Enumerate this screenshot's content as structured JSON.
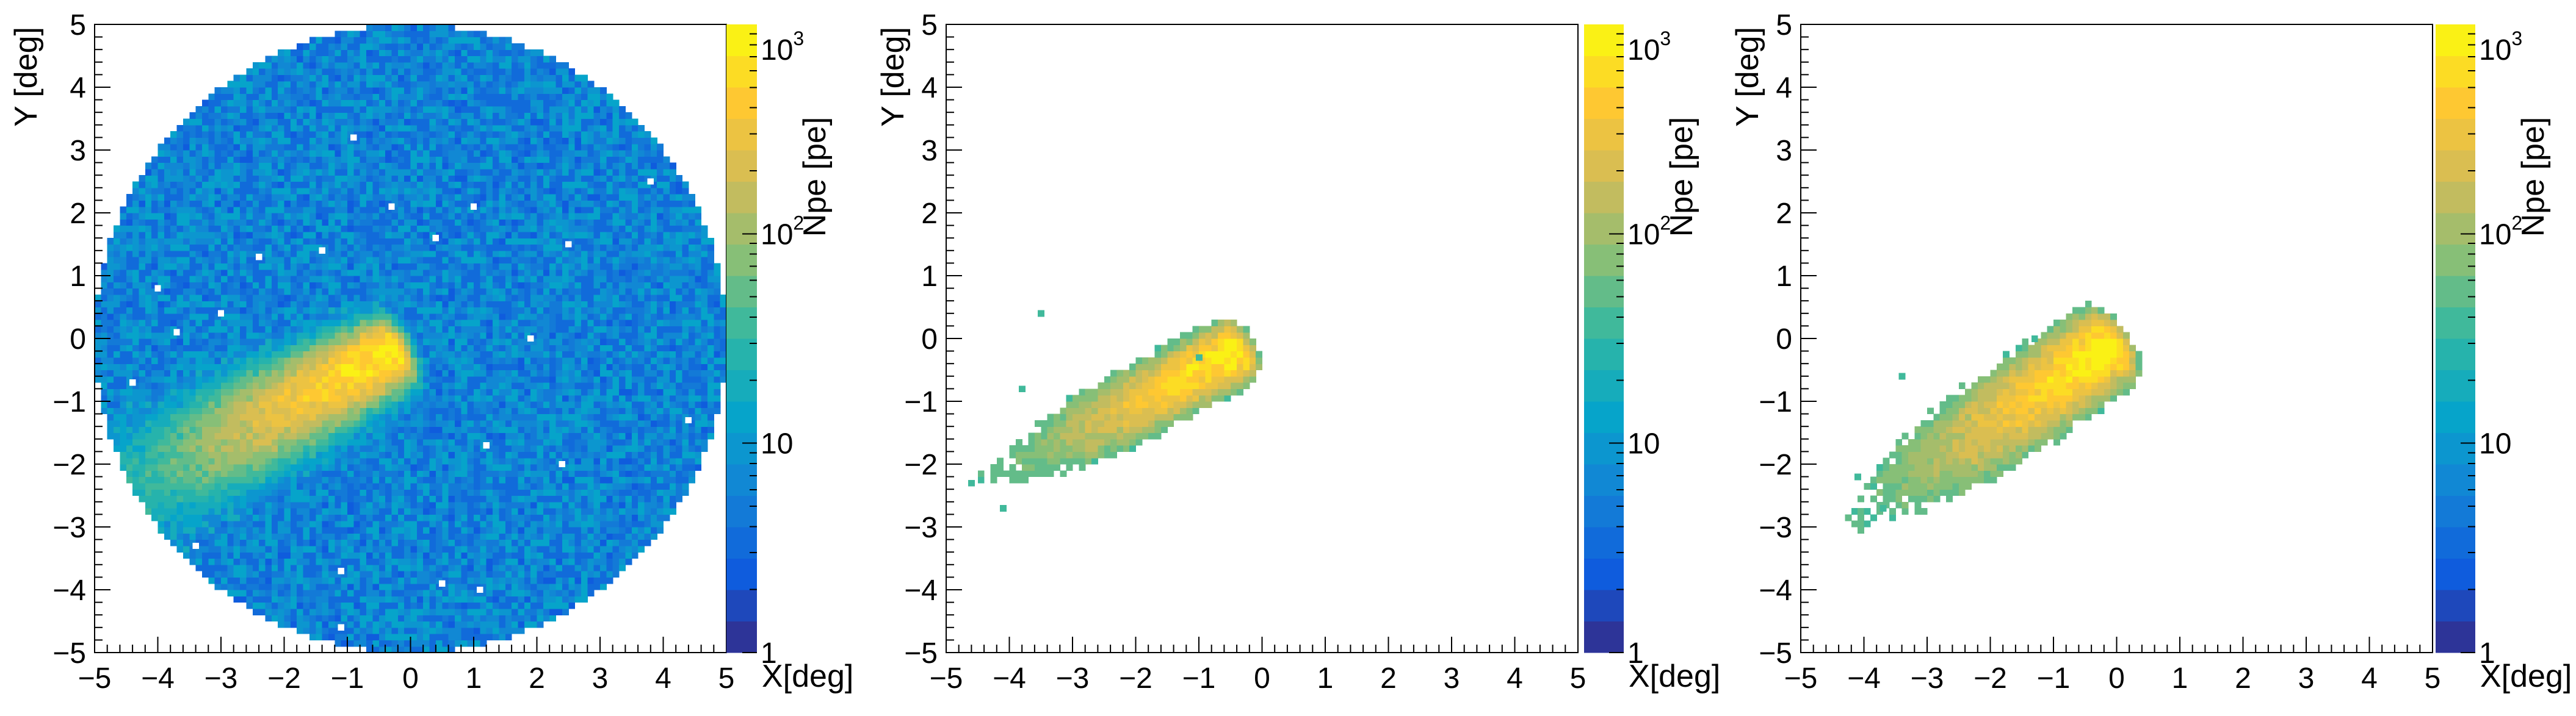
{
  "chart_data": [
    {
      "type": "heatmap",
      "xlabel": "X[deg]",
      "ylabel": "Y [deg]",
      "zlabel": "Npe [pe]",
      "xlim": [
        -5,
        5
      ],
      "ylim": [
        -5,
        5
      ],
      "x_ticks": [
        "−5",
        "−4",
        "−3",
        "−2",
        "−1",
        "0",
        "1",
        "2",
        "3",
        "4",
        "5"
      ],
      "y_ticks": [
        "−5",
        "−4",
        "−3",
        "−2",
        "−1",
        "0",
        "1",
        "2",
        "3",
        "4",
        "5"
      ],
      "z_scale": "log",
      "zlim": [
        1,
        1000
      ],
      "colorbar_labels": [
        {
          "base": "1",
          "exp": "",
          "z": 1
        },
        {
          "base": "10",
          "exp": "",
          "z": 10
        },
        {
          "base": "10",
          "exp": "2",
          "z": 100
        },
        {
          "base": "10",
          "exp": "3",
          "z": 1000
        }
      ],
      "description": "Full camera field of view (radius ~5 deg) filled with night-sky background of 1-10 pe, plus a bright elongated shower image along the line from (-4.5,-2.5) to (-0.4,-0.2)",
      "background": {
        "field_radius": 5.0,
        "typical_npe": 8
      },
      "shower": {
        "start": [
          -4.6,
          -2.5
        ],
        "end": [
          -0.3,
          -0.2
        ],
        "peak_npe": 900,
        "width": 0.25,
        "tail_width": 0.5
      },
      "dead_pixels": [
        [
          -0.9,
          3.2
        ],
        [
          -1.4,
          1.4
        ],
        [
          -2.4,
          1.3
        ],
        [
          -4.0,
          0.8
        ],
        [
          -3.0,
          0.4
        ],
        [
          -3.7,
          0.1
        ],
        [
          -4.4,
          -0.7
        ],
        [
          -0.3,
          2.1
        ],
        [
          0.4,
          1.6
        ],
        [
          1.0,
          2.1
        ],
        [
          1.9,
          0.0
        ],
        [
          2.5,
          1.5
        ],
        [
          3.8,
          2.5
        ],
        [
          4.4,
          -1.3
        ],
        [
          2.4,
          -2.0
        ],
        [
          1.2,
          -1.7
        ],
        [
          -3.4,
          -3.3
        ],
        [
          -1.1,
          -3.7
        ],
        [
          0.5,
          -3.9
        ],
        [
          1.1,
          -4.0
        ],
        [
          -1.1,
          -4.6
        ]
      ]
    },
    {
      "type": "heatmap",
      "xlabel": "X[deg]",
      "ylabel": "Y [deg]",
      "zlabel": "Npe [pe]",
      "xlim": [
        -5,
        5
      ],
      "ylim": [
        -5,
        5
      ],
      "x_ticks": [
        "−5",
        "−4",
        "−3",
        "−2",
        "−1",
        "0",
        "1",
        "2",
        "3",
        "4",
        "5"
      ],
      "y_ticks": [
        "−5",
        "−4",
        "−3",
        "−2",
        "−1",
        "0",
        "1",
        "2",
        "3",
        "4",
        "5"
      ],
      "z_scale": "log",
      "zlim": [
        1,
        1000
      ],
      "colorbar_labels": [
        {
          "base": "1",
          "exp": "",
          "z": 1
        },
        {
          "base": "10",
          "exp": "",
          "z": 10
        },
        {
          "base": "10",
          "exp": "2",
          "z": 100
        },
        {
          "base": "10",
          "exp": "3",
          "z": 1000
        }
      ],
      "description": "Cleaned image: only the shower pixels remain",
      "shower": {
        "start": [
          -4.4,
          -2.3
        ],
        "end": [
          -0.4,
          -0.2
        ],
        "peak_npe": 900,
        "width": 0.22,
        "tail_width": 0.35
      },
      "isolated_pixels": [
        [
          -3.5,
          0.4
        ],
        [
          -3.8,
          -0.8
        ],
        [
          -4.1,
          -2.7
        ],
        [
          -4.6,
          -2.3
        ],
        [
          -1.0,
          -0.3
        ]
      ]
    },
    {
      "type": "heatmap",
      "xlabel": "X[deg]",
      "ylabel": "Y [deg]",
      "zlabel": "Npe [pe]",
      "xlim": [
        -5,
        5
      ],
      "ylim": [
        -5,
        5
      ],
      "x_ticks": [
        "−5",
        "−4",
        "−3",
        "−2",
        "−1",
        "0",
        "1",
        "2",
        "3",
        "4",
        "5"
      ],
      "y_ticks": [
        "−5",
        "−4",
        "−3",
        "−2",
        "−1",
        "0",
        "1",
        "2",
        "3",
        "4",
        "5"
      ],
      "z_scale": "log",
      "zlim": [
        1,
        1000
      ],
      "colorbar_labels": [
        {
          "base": "1",
          "exp": "",
          "z": 1
        },
        {
          "base": "10",
          "exp": "",
          "z": 10
        },
        {
          "base": "10",
          "exp": "2",
          "z": 100
        },
        {
          "base": "10",
          "exp": "3",
          "z": 1000
        }
      ],
      "description": "Cleaned image with a slightly wider shower footprint",
      "shower": {
        "start": [
          -4.2,
          -2.9
        ],
        "end": [
          -0.1,
          -0.1
        ],
        "peak_npe": 950,
        "width": 0.28,
        "tail_width": 0.45
      },
      "isolated_pixels": [
        [
          -3.4,
          -0.6
        ],
        [
          -3.7,
          -2.7
        ],
        [
          -4.1,
          -2.2
        ],
        [
          -1.3,
          0.0
        ]
      ]
    }
  ]
}
